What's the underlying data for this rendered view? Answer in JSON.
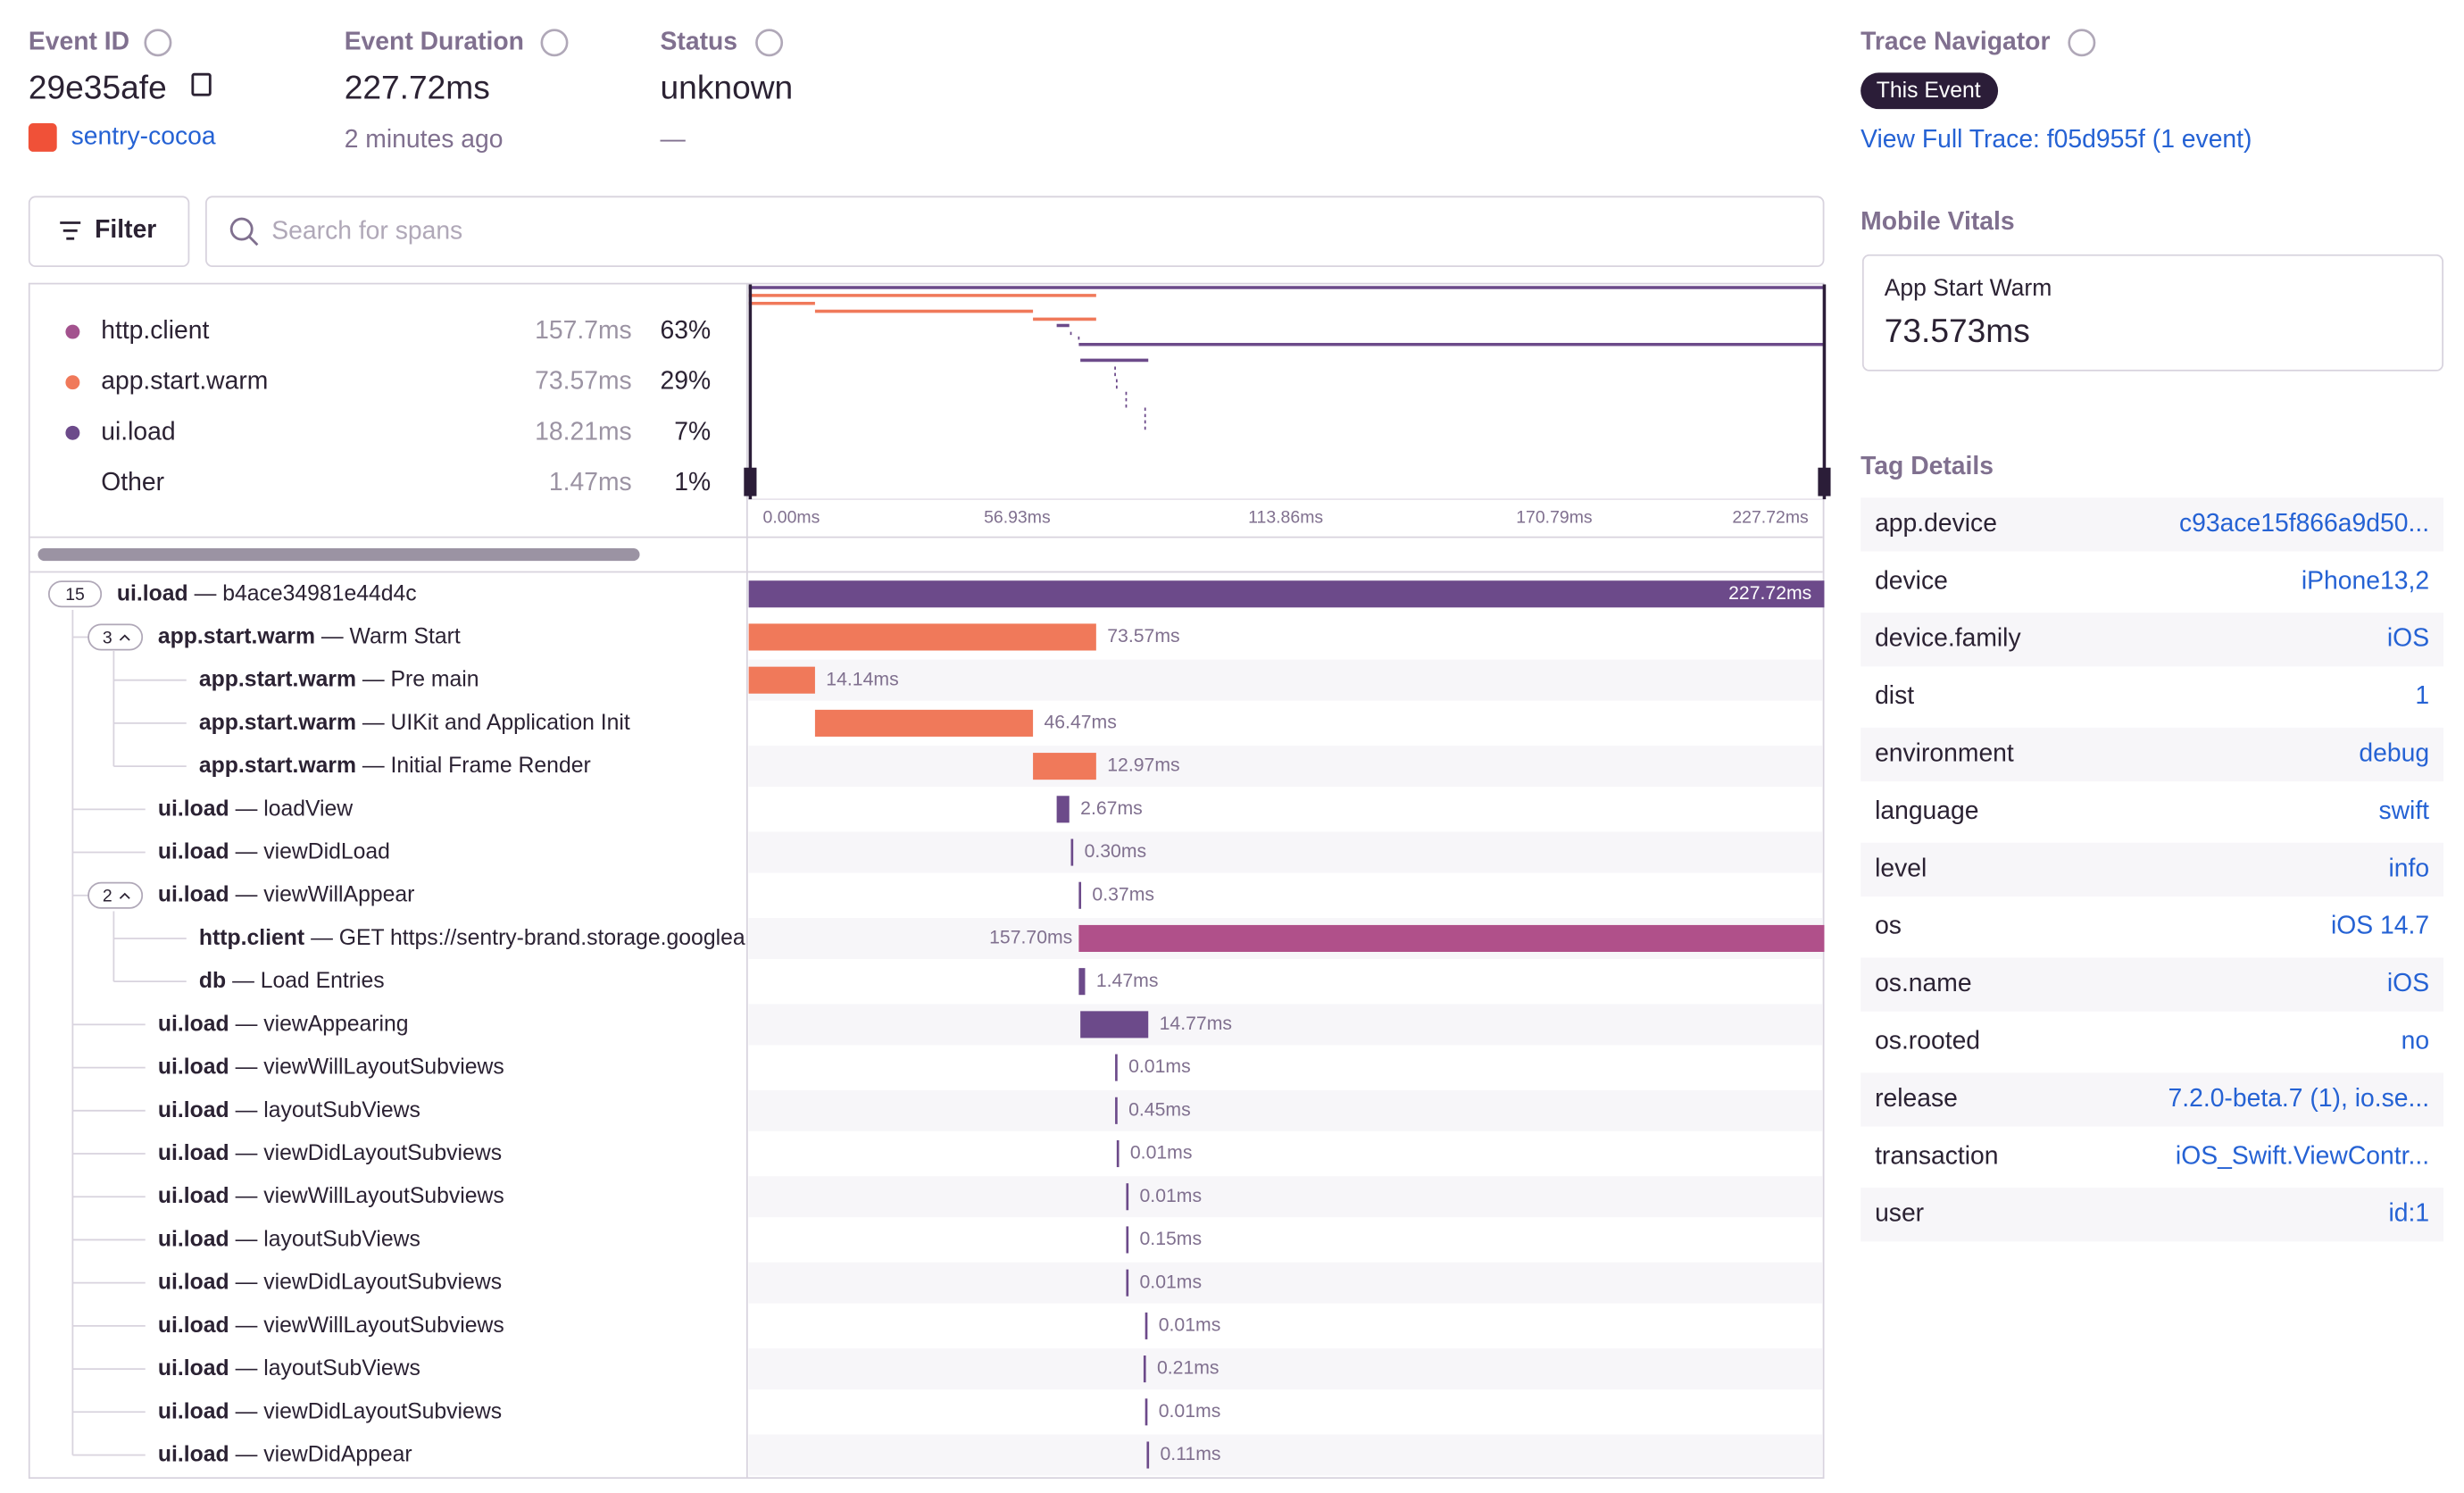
{
  "header": {
    "event_id": {
      "label": "Event ID",
      "value": "29e35afe",
      "project": "sentry-cocoa"
    },
    "event_duration": {
      "label": "Event Duration",
      "value": "227.72ms",
      "time": "2 minutes ago"
    },
    "status": {
      "label": "Status",
      "value": "unknown",
      "detail": "—"
    },
    "trace_navigator": {
      "label": "Trace Navigator",
      "badge": "This Event",
      "link": "View Full Trace: f05d955f (1 event)"
    }
  },
  "toolbar": {
    "filter": "Filter",
    "search_placeholder": "Search for spans"
  },
  "ops_breakdown": [
    {
      "op": "http.client",
      "duration": "157.7ms",
      "percent": "63%"
    },
    {
      "op": "app.start.warm",
      "duration": "73.57ms",
      "percent": "29%"
    },
    {
      "op": "ui.load",
      "duration": "18.21ms",
      "percent": "7%"
    },
    {
      "op": "Other",
      "duration": "1.47ms",
      "percent": "1%"
    }
  ],
  "minimap_ticks": [
    "0.00ms",
    "56.93ms",
    "113.86ms",
    "170.79ms",
    "227.72ms"
  ],
  "spans": [
    {
      "count": "15",
      "op": "ui.load",
      "description": "— b4ace34981e44d4c",
      "duration": "227.72ms"
    },
    {
      "count": "3",
      "op": "app.start.warm",
      "description": "— Warm Start",
      "duration": "73.57ms"
    },
    {
      "op": "app.start.warm",
      "description": "— Pre main",
      "duration": "14.14ms"
    },
    {
      "op": "app.start.warm",
      "description": "— UIKit and Application Init",
      "duration": "46.47ms"
    },
    {
      "op": "app.start.warm",
      "description": "— Initial Frame Render",
      "duration": "12.97ms"
    },
    {
      "op": "ui.load",
      "description": "— loadView",
      "duration": "2.67ms"
    },
    {
      "op": "ui.load",
      "description": "— viewDidLoad",
      "duration": "0.30ms"
    },
    {
      "count": "2",
      "op": "ui.load",
      "description": "— viewWillAppear",
      "duration": "0.37ms"
    },
    {
      "op": "http.client",
      "description": "— GET https://sentry-brand.storage.googlea",
      "duration": "157.70ms"
    },
    {
      "op": "db",
      "description": "— Load Entries",
      "duration": "1.47ms"
    },
    {
      "op": "ui.load",
      "description": "— viewAppearing",
      "duration": "14.77ms"
    },
    {
      "op": "ui.load",
      "description": "— viewWillLayoutSubviews",
      "duration": "0.01ms"
    },
    {
      "op": "ui.load",
      "description": "— layoutSubViews",
      "duration": "0.45ms"
    },
    {
      "op": "ui.load",
      "description": "— viewDidLayoutSubviews",
      "duration": "0.01ms"
    },
    {
      "op": "ui.load",
      "description": "— viewWillLayoutSubviews",
      "duration": "0.01ms"
    },
    {
      "op": "ui.load",
      "description": "— layoutSubViews",
      "duration": "0.15ms"
    },
    {
      "op": "ui.load",
      "description": "— viewDidLayoutSubviews",
      "duration": "0.01ms"
    },
    {
      "op": "ui.load",
      "description": "— viewWillLayoutSubviews",
      "duration": "0.01ms"
    },
    {
      "op": "ui.load",
      "description": "— layoutSubViews",
      "duration": "0.21ms"
    },
    {
      "op": "ui.load",
      "description": "— viewDidLayoutSubviews",
      "duration": "0.01ms"
    },
    {
      "op": "ui.load",
      "description": "— viewDidAppear",
      "duration": "0.11ms"
    }
  ],
  "mobile_vitals": {
    "title": "Mobile Vitals",
    "name": "App Start Warm",
    "value": "73.573ms"
  },
  "tag_details": {
    "title": "Tag Details",
    "tags": [
      [
        "app.device",
        "c93ace15f866a9d50..."
      ],
      [
        "device",
        "iPhone13,2"
      ],
      [
        "device.family",
        "iOS"
      ],
      [
        "dist",
        "1"
      ],
      [
        "environment",
        "debug"
      ],
      [
        "language",
        "swift"
      ],
      [
        "level",
        "info"
      ],
      [
        "os",
        "iOS 14.7"
      ],
      [
        "os.name",
        "iOS"
      ],
      [
        "os.rooted",
        "no"
      ],
      [
        "release",
        "7.2.0-beta.7 (1), io.se..."
      ],
      [
        "transaction",
        "iOS_Swift.ViewContr..."
      ],
      [
        "user",
        "id:1"
      ]
    ]
  }
}
